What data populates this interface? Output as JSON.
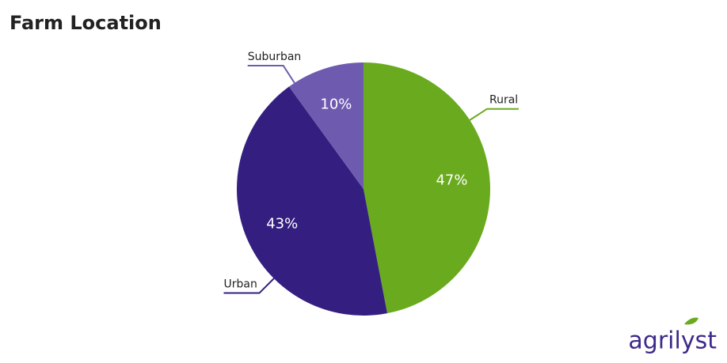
{
  "chart_data": {
    "type": "pie",
    "title": "Farm Location",
    "categories": [
      "Rural",
      "Urban",
      "Suburban"
    ],
    "values": [
      47,
      43,
      10
    ],
    "value_labels": [
      "47%",
      "43%",
      "10%"
    ],
    "colors": [
      "#6aaa1f",
      "#341f80",
      "#6e5bb0"
    ]
  },
  "logo": "agrilyst"
}
